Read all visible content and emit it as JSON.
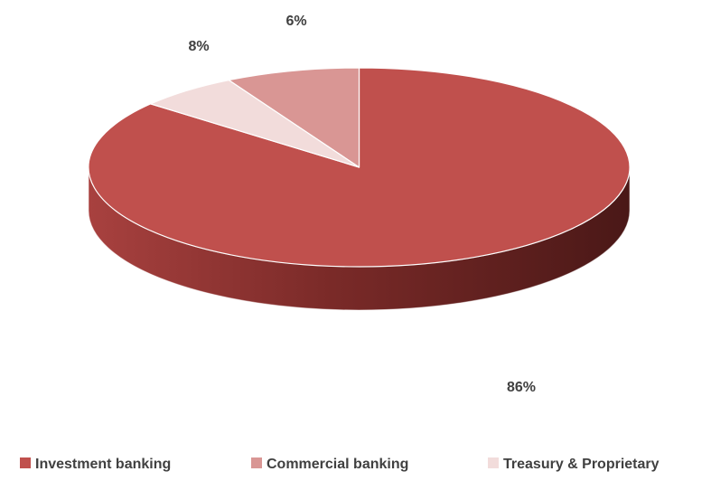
{
  "chart_data": {
    "type": "pie",
    "style": "3d",
    "title": "",
    "slices": [
      {
        "label": "Investment banking",
        "value": 86,
        "display": "86%",
        "color": "#c0504d"
      },
      {
        "label": "Commercial banking",
        "value": 8,
        "display": "8%",
        "color": "#d99694"
      },
      {
        "label": "Treasury & Proprietary",
        "value": 6,
        "display": "6%",
        "color": "#f2dcdb"
      }
    ],
    "legend": {
      "position": "bottom"
    }
  }
}
